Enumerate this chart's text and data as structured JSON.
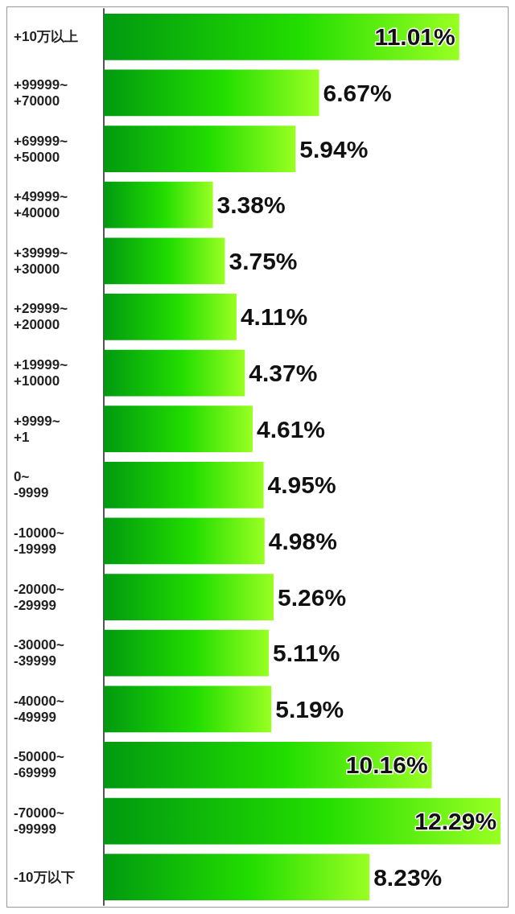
{
  "chart_data": {
    "type": "bar",
    "orientation": "horizontal",
    "categories": [
      "+10万以上",
      "+99999~\n+70000",
      "+69999~\n+50000",
      "+49999~\n+40000",
      "+39999~\n+30000",
      "+29999~\n+20000",
      "+19999~\n+10000",
      "+9999~\n+1",
      "0~\n-9999",
      "-10000~\n-19999",
      "-20000~\n-29999",
      "-30000~\n-39999",
      "-40000~\n-49999",
      "-50000~\n-69999",
      "-70000~\n-99999",
      "-10万以下"
    ],
    "values": [
      11.01,
      6.67,
      5.94,
      3.38,
      3.75,
      4.11,
      4.37,
      4.61,
      4.95,
      4.98,
      5.26,
      5.11,
      5.19,
      10.16,
      12.29,
      8.23
    ],
    "value_labels": [
      "11.01%",
      "6.67%",
      "5.94%",
      "3.38%",
      "3.75%",
      "4.11%",
      "4.37%",
      "4.61%",
      "4.95%",
      "4.98%",
      "5.26%",
      "5.11%",
      "5.19%",
      "10.16%",
      "12.29%",
      "8.23%"
    ],
    "color": "#22dd00"
  }
}
